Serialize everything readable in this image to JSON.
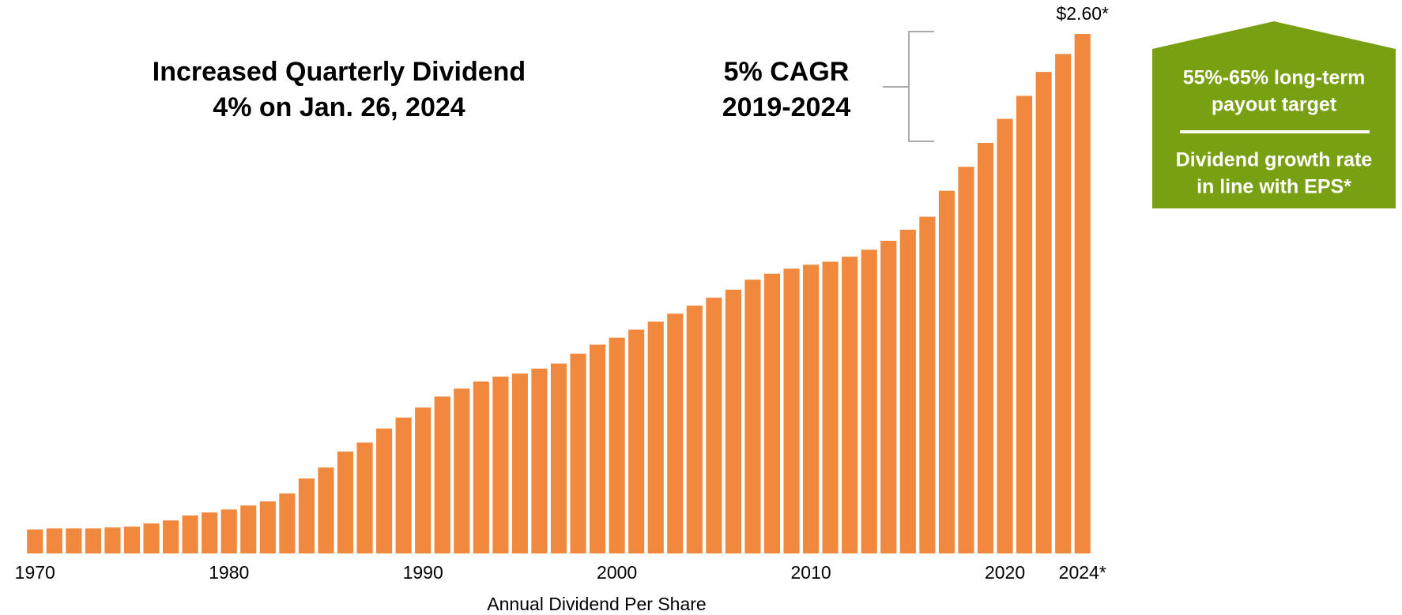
{
  "chart_data": {
    "type": "bar",
    "x_label": "Annual Dividend Per Share",
    "annotations": [
      "Increased Quarterly Dividend",
      "4% on Jan. 26, 2024",
      "5% CAGR",
      "2019-2024"
    ],
    "callout": [
      "55%-65% long-term",
      "payout target",
      "Dividend growth rate",
      "in line with EPS*"
    ],
    "callout_color": "#78a012",
    "color": "#f0883e",
    "ylim": [
      0,
      2.6
    ],
    "categories": [
      "1970",
      null,
      null,
      null,
      null,
      null,
      null,
      null,
      null,
      null,
      "1980",
      null,
      null,
      null,
      null,
      null,
      null,
      null,
      null,
      null,
      "1990",
      null,
      null,
      null,
      null,
      null,
      null,
      null,
      null,
      null,
      "2000",
      null,
      null,
      null,
      null,
      null,
      null,
      null,
      null,
      null,
      "2010",
      null,
      null,
      null,
      null,
      null,
      null,
      null,
      null,
      null,
      "2020",
      null,
      null,
      null,
      "2024*"
    ],
    "values": [
      0.12,
      0.125,
      0.125,
      0.125,
      0.13,
      0.134,
      0.15,
      0.165,
      0.19,
      0.205,
      0.22,
      0.24,
      0.26,
      0.3,
      0.375,
      0.43,
      0.51,
      0.555,
      0.625,
      0.68,
      0.73,
      0.785,
      0.825,
      0.86,
      0.885,
      0.9,
      0.925,
      0.95,
      1.0,
      1.045,
      1.08,
      1.12,
      1.16,
      1.2,
      1.24,
      1.28,
      1.32,
      1.37,
      1.4,
      1.425,
      1.445,
      1.46,
      1.485,
      1.52,
      1.565,
      1.62,
      1.685,
      1.815,
      1.935,
      2.055,
      2.175,
      2.29,
      2.41,
      2.5,
      2.6
    ],
    "value_labels": [
      null,
      null,
      null,
      null,
      null,
      null,
      null,
      null,
      null,
      null,
      null,
      null,
      null,
      null,
      null,
      null,
      null,
      null,
      null,
      null,
      null,
      null,
      null,
      null,
      null,
      null,
      null,
      null,
      null,
      null,
      null,
      null,
      null,
      null,
      null,
      null,
      null,
      null,
      null,
      null,
      null,
      null,
      null,
      null,
      null,
      null,
      null,
      null,
      null,
      null,
      null,
      null,
      null,
      null,
      "$2.60*"
    ]
  }
}
